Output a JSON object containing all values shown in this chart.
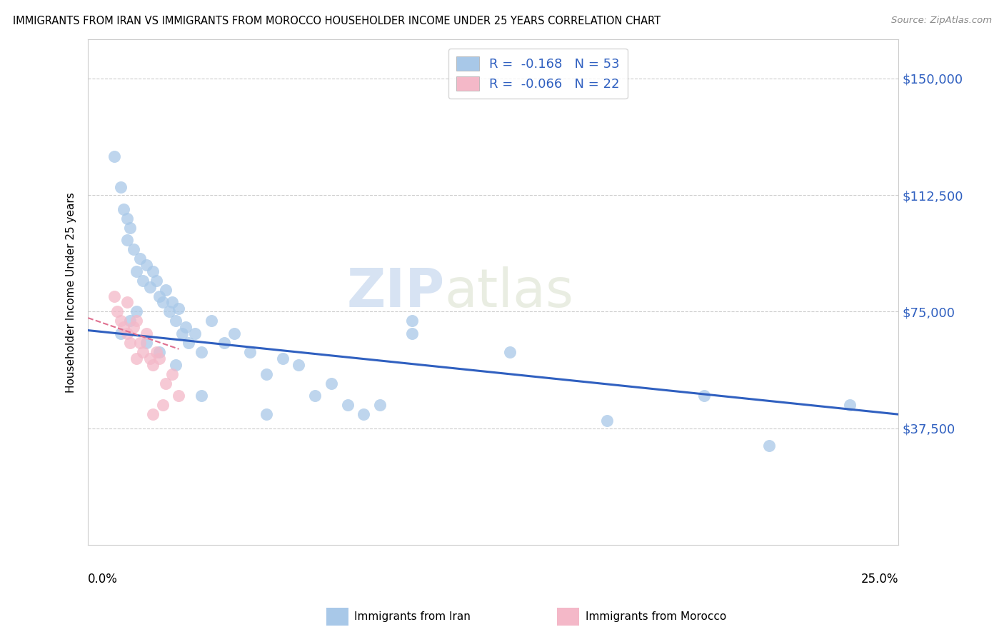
{
  "title": "IMMIGRANTS FROM IRAN VS IMMIGRANTS FROM MOROCCO HOUSEHOLDER INCOME UNDER 25 YEARS CORRELATION CHART",
  "source": "Source: ZipAtlas.com",
  "ylabel": "Householder Income Under 25 years",
  "xlim": [
    0.0,
    0.25
  ],
  "ylim": [
    0,
    162500
  ],
  "yticks": [
    37500,
    75000,
    112500,
    150000
  ],
  "ytick_labels": [
    "$37,500",
    "$75,000",
    "$112,500",
    "$150,000"
  ],
  "legend_iran_r": "R =  -0.168",
  "legend_iran_n": "N = 53",
  "legend_morocco_r": "R =  -0.066",
  "legend_morocco_n": "N = 22",
  "iran_color": "#a8c8e8",
  "morocco_color": "#f4b8c8",
  "iran_line_color": "#3060c0",
  "morocco_line_color": "#e07090",
  "watermark_zip": "ZIP",
  "watermark_atlas": "atlas",
  "bottom_label_iran": "Immigrants from Iran",
  "bottom_label_morocco": "Immigrants from Morocco",
  "iran_scatter_x": [
    0.008,
    0.01,
    0.011,
    0.012,
    0.012,
    0.013,
    0.014,
    0.015,
    0.016,
    0.017,
    0.018,
    0.019,
    0.02,
    0.021,
    0.022,
    0.023,
    0.024,
    0.025,
    0.026,
    0.027,
    0.028,
    0.029,
    0.03,
    0.031,
    0.033,
    0.035,
    0.038,
    0.042,
    0.045,
    0.05,
    0.055,
    0.06,
    0.065,
    0.07,
    0.075,
    0.08,
    0.085,
    0.09,
    0.01,
    0.013,
    0.015,
    0.018,
    0.022,
    0.027,
    0.035,
    0.055,
    0.1,
    0.13,
    0.16,
    0.19,
    0.21,
    0.235,
    0.1
  ],
  "iran_scatter_y": [
    125000,
    115000,
    108000,
    105000,
    98000,
    102000,
    95000,
    88000,
    92000,
    85000,
    90000,
    83000,
    88000,
    85000,
    80000,
    78000,
    82000,
    75000,
    78000,
    72000,
    76000,
    68000,
    70000,
    65000,
    68000,
    62000,
    72000,
    65000,
    68000,
    62000,
    55000,
    60000,
    58000,
    48000,
    52000,
    45000,
    42000,
    45000,
    68000,
    72000,
    75000,
    65000,
    62000,
    58000,
    48000,
    42000,
    68000,
    62000,
    40000,
    48000,
    32000,
    45000,
    72000
  ],
  "morocco_scatter_x": [
    0.008,
    0.009,
    0.01,
    0.011,
    0.012,
    0.013,
    0.014,
    0.015,
    0.016,
    0.017,
    0.018,
    0.019,
    0.02,
    0.021,
    0.023,
    0.024,
    0.026,
    0.028,
    0.012,
    0.015,
    0.02,
    0.022
  ],
  "morocco_scatter_y": [
    80000,
    75000,
    72000,
    70000,
    68000,
    65000,
    70000,
    60000,
    65000,
    62000,
    68000,
    60000,
    58000,
    62000,
    45000,
    52000,
    55000,
    48000,
    78000,
    72000,
    42000,
    60000
  ],
  "iran_trend_x": [
    0.0,
    0.25
  ],
  "iran_trend_y": [
    69000,
    42000
  ],
  "morocco_trend_x": [
    0.0,
    0.028
  ],
  "morocco_trend_y": [
    73000,
    63000
  ]
}
